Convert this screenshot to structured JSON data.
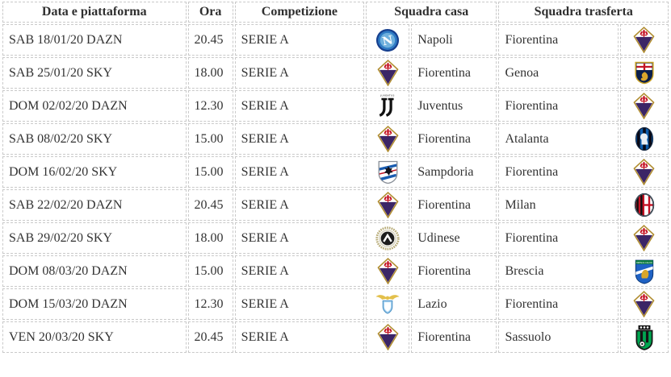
{
  "colors": {
    "border": "#c9c9c9",
    "header_text": "#2f2f2f",
    "body_text": "#333333",
    "background": "#ffffff"
  },
  "table": {
    "columns": [
      "Data e piattaforma",
      "Ora",
      "Competizione",
      "Squadra casa",
      "Squadra trasferta"
    ],
    "rows": [
      {
        "date": "SAB 18/01/20 DAZN",
        "time": "20.45",
        "competition": "SERIE A",
        "home_team": "Napoli",
        "home_logo": "napoli",
        "away_team": "Fiorentina",
        "away_logo": "fiorentina"
      },
      {
        "date": "SAB 25/01/20 SKY",
        "time": "18.00",
        "competition": "SERIE A",
        "home_team": "Fiorentina",
        "home_logo": "fiorentina",
        "away_team": "Genoa",
        "away_logo": "genoa"
      },
      {
        "date": "DOM 02/02/20 DAZN",
        "time": "12.30",
        "competition": "SERIE A",
        "home_team": "Juventus",
        "home_logo": "juventus",
        "away_team": "Fiorentina",
        "away_logo": "fiorentina"
      },
      {
        "date": "SAB 08/02/20 SKY",
        "time": "15.00",
        "competition": "SERIE A",
        "home_team": "Fiorentina",
        "home_logo": "fiorentina",
        "away_team": "Atalanta",
        "away_logo": "atalanta"
      },
      {
        "date": "DOM 16/02/20 SKY",
        "time": "15.00",
        "competition": "SERIE A",
        "home_team": "Sampdoria",
        "home_logo": "sampdoria",
        "away_team": "Fiorentina",
        "away_logo": "fiorentina"
      },
      {
        "date": "SAB 22/02/20 DAZN",
        "time": "20.45",
        "competition": "SERIE A",
        "home_team": "Fiorentina",
        "home_logo": "fiorentina",
        "away_team": "Milan",
        "away_logo": "milan"
      },
      {
        "date": "SAB 29/02/20 SKY",
        "time": "18.00",
        "competition": "SERIE A",
        "home_team": "Udinese",
        "home_logo": "udinese",
        "away_team": "Fiorentina",
        "away_logo": "fiorentina"
      },
      {
        "date": "DOM 08/03/20 DAZN",
        "time": "15.00",
        "competition": "SERIE A",
        "home_team": "Fiorentina",
        "home_logo": "fiorentina",
        "away_team": "Brescia",
        "away_logo": "brescia"
      },
      {
        "date": "DOM 15/03/20 DAZN",
        "time": "12.30",
        "competition": "SERIE A",
        "home_team": "Lazio",
        "home_logo": "lazio",
        "away_team": "Fiorentina",
        "away_logo": "fiorentina"
      },
      {
        "date": "VEN 20/03/20 SKY",
        "time": "20.45",
        "competition": "SERIE A",
        "home_team": "Fiorentina",
        "home_logo": "fiorentina",
        "away_team": "Sassuolo",
        "away_logo": "sassuolo"
      }
    ]
  }
}
